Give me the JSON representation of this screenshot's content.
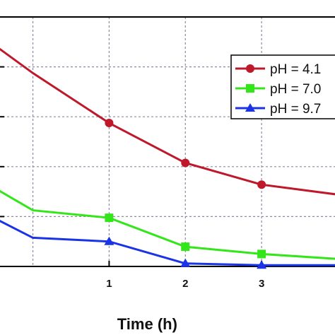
{
  "chart_data": {
    "type": "line",
    "xlabel": "Time (h)",
    "ylabel": "",
    "title": "",
    "xlim": [
      -0.45,
      4.0
    ],
    "ylim": [
      0,
      1.0
    ],
    "x_ticks": [
      "1",
      "2",
      "3"
    ],
    "grid": true,
    "legend_position": "top-right",
    "series": [
      {
        "name": "pH = 4.1",
        "color": "#c0182b",
        "marker": "circle",
        "x": [
          -0.45,
          0,
          1,
          2,
          3,
          4
        ],
        "y": [
          0.875,
          0.775,
          0.575,
          0.415,
          0.328,
          0.288
        ]
      },
      {
        "name": "pH = 7.0",
        "color": "#33e619",
        "marker": "square",
        "x": [
          -0.45,
          0,
          1,
          2,
          3,
          4
        ],
        "y": [
          0.305,
          0.225,
          0.195,
          0.079,
          0.05,
          0.03
        ]
      },
      {
        "name": "pH = 9.7",
        "color": "#1a33e6",
        "marker": "triangle",
        "x": [
          -0.45,
          0,
          1,
          2,
          3,
          4
        ],
        "y": [
          0.185,
          0.115,
          0.1,
          0.012,
          0.005,
          0.005
        ]
      }
    ]
  }
}
